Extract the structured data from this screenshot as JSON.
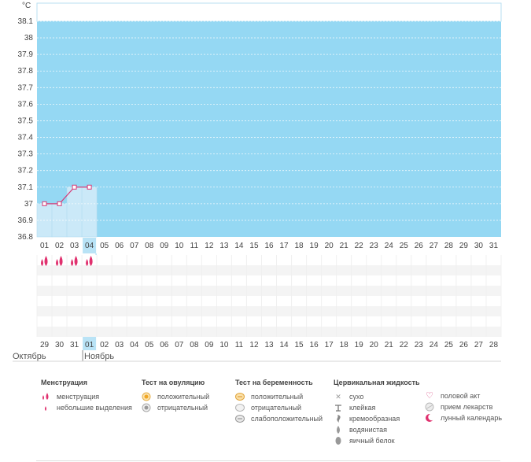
{
  "chart_data": {
    "type": "line",
    "ylabel": "°C",
    "yticks": [
      "38.1",
      "38",
      "37.9",
      "37.8",
      "37.7",
      "37.6",
      "37.5",
      "37.4",
      "37.3",
      "37.2",
      "37.1",
      "37",
      "36.9",
      "36.8"
    ],
    "ylim": [
      36.8,
      38.1
    ],
    "cycle_days": [
      "01",
      "02",
      "03",
      "04",
      "05",
      "06",
      "07",
      "08",
      "09",
      "10",
      "11",
      "12",
      "13",
      "14",
      "15",
      "16",
      "17",
      "18",
      "19",
      "20",
      "21",
      "22",
      "23",
      "24",
      "25",
      "26",
      "27",
      "28",
      "29",
      "30",
      "31"
    ],
    "temperatures": [
      37.0,
      37.0,
      37.1,
      37.1
    ],
    "current_day": "04",
    "calendar_dates": [
      "29",
      "30",
      "31",
      "01",
      "02",
      "03",
      "04",
      "05",
      "06",
      "07",
      "08",
      "09",
      "10",
      "11",
      "12",
      "13",
      "14",
      "15",
      "16",
      "17",
      "18",
      "19",
      "20",
      "21",
      "22",
      "23",
      "24",
      "25",
      "26",
      "27",
      "28"
    ],
    "highlighted_dates": [
      "03",
      "04",
      "10",
      "11",
      "17",
      "18",
      "24",
      "25"
    ],
    "menstruation_days": [
      "01",
      "02",
      "03",
      "04"
    ],
    "grid": true,
    "colors": {
      "plot_bg": "#95d8f3",
      "line": "#d63a77",
      "filled_area": "#cbe9f8",
      "current_day_bg": "#b9e3f6",
      "highlight_text": "#c8205a",
      "grid_row_a": "#ffffff",
      "grid_row_b": "#f4f4f4"
    }
  },
  "months": {
    "prev": "Октябрь",
    "next": "Ноябрь"
  },
  "legend": {
    "menstruation": {
      "title": "Менструация",
      "items": [
        "менструация",
        "небольшие выделения"
      ]
    },
    "ovulation_test": {
      "title": "Тест на овуляцию",
      "items": [
        "положительный",
        "отрицательный"
      ]
    },
    "pregnancy_test": {
      "title": "Тест на беременность",
      "items": [
        "положительный",
        "отрицательный",
        "слабоположительный"
      ]
    },
    "cervical_fluid": {
      "title": "Цервикальная жидкость",
      "items": [
        "сухо",
        "клейкая",
        "кремообразная",
        "водянистая",
        "яичный белок"
      ]
    },
    "other": {
      "items": [
        "половой акт",
        "прием лекарств",
        "лунный календарь"
      ]
    }
  }
}
